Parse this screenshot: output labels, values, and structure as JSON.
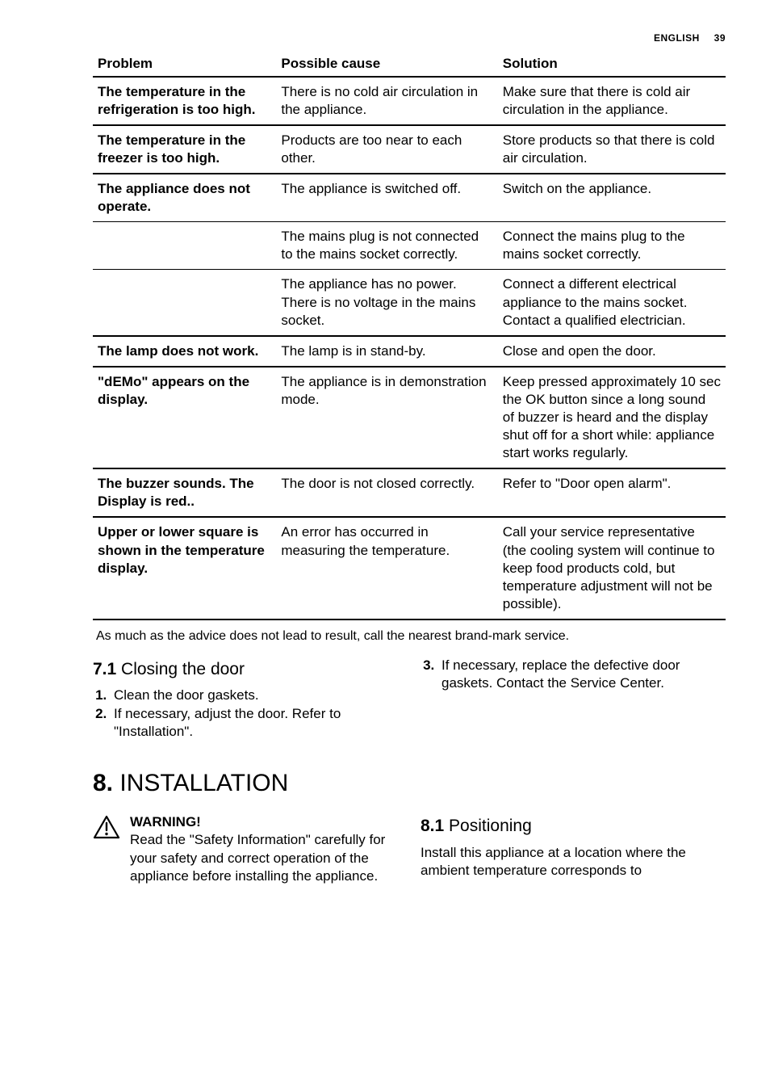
{
  "header": {
    "lang": "ENGLISH",
    "page": "39"
  },
  "table": {
    "headers": {
      "problem": "Problem",
      "cause": "Possible cause",
      "solution": "Solution"
    },
    "rows": [
      {
        "problem": "The temperature in the refrigeration is too high.",
        "cause": "There is no cold air circulation in the appliance.",
        "solution": "Make sure that there is cold air circulation in the appliance.",
        "groupEnd": true
      },
      {
        "problem": "The temperature in the freezer is too high.",
        "cause": "Products are too near to each other.",
        "solution": "Store products so that there is cold air circulation.",
        "groupEnd": true
      },
      {
        "problem": "The appliance does not operate.",
        "cause": "The appliance is switched off.",
        "solution": "Switch on the appliance.",
        "groupEnd": false
      },
      {
        "problem": "",
        "cause": "The mains plug is not connected to the mains socket correctly.",
        "solution": "Connect the mains plug to the mains socket correctly.",
        "groupEnd": false
      },
      {
        "problem": "",
        "cause": "The appliance has no power. There is no voltage in the mains socket.",
        "solution": "Connect a different electrical appliance to the mains socket. Contact a qualified electrician.",
        "groupEnd": true
      },
      {
        "problem": "The lamp does not work.",
        "cause": "The lamp is in stand-by.",
        "solution": "Close and open the door.",
        "groupEnd": true
      },
      {
        "problem": "\"dEMo\" appears on the display.",
        "cause": "The appliance is in demonstration mode.",
        "solution": " Keep pressed approximately 10 sec the OK button since a long sound of buzzer is heard and the display shut off for a short while: appliance start works regularly.",
        "groupEnd": true
      },
      {
        "problem": "The buzzer sounds. The Display is red..",
        "cause": " The door is not closed correctly.",
        "solution": " Refer to \"Door open alarm\".",
        "groupEnd": true
      },
      {
        "problem": "Upper or lower square is shown in the temperature display.",
        "cause": "An error has occurred in measuring the temperature.",
        "solution": "Call your service representative (the cooling system will continue to keep food products cold, but temperature adjustment will not be possible).",
        "groupEnd": true
      }
    ]
  },
  "footnote": "As much as the advice does not lead to result, call the nearest brand-mark service.",
  "sec71": {
    "num": "7.1",
    "title": "Closing the door",
    "steps_left": [
      "Clean the door gaskets.",
      "If necessary, adjust the door. Refer to \"Installation\"."
    ],
    "steps_right_start": 3,
    "steps_right": [
      "If necessary, replace the defective door gaskets. Contact the Service Center."
    ]
  },
  "sec8": {
    "num": "8.",
    "title": "INSTALLATION",
    "warning_label": "WARNING!",
    "warning_text": "Read the \"Safety Information\" carefully for your safety and correct operation of the appliance before installing the appliance.",
    "sub_num": "8.1",
    "sub_title": "Positioning",
    "sub_text": "Install this appliance at a location where the ambient temperature corresponds to"
  },
  "colors": {
    "text": "#000000",
    "line": "#000000",
    "bg": "#ffffff"
  }
}
